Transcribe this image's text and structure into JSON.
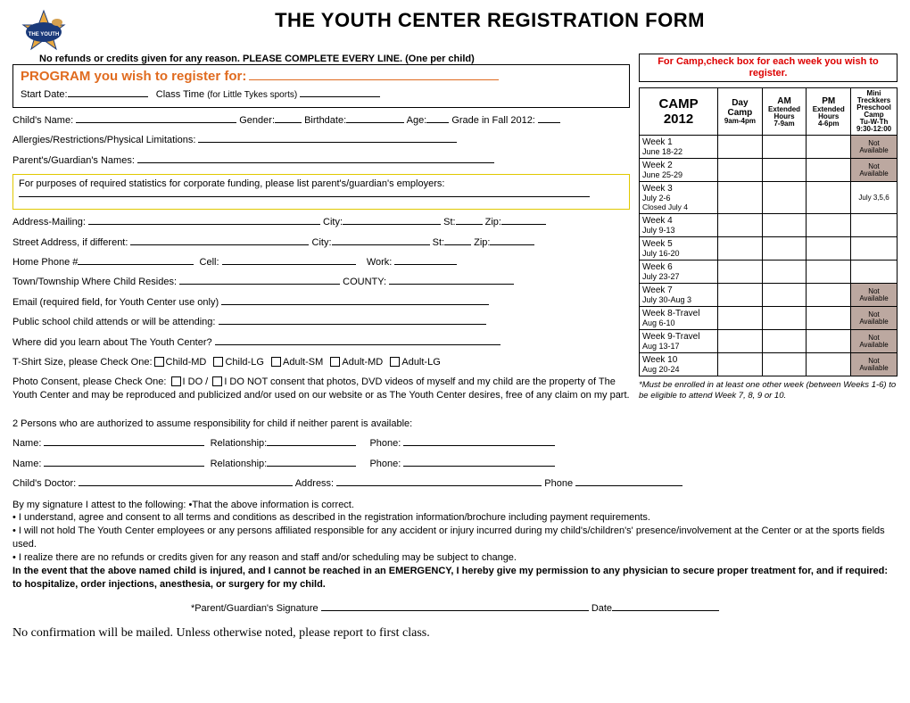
{
  "title": "THE YOUTH CENTER REGISTRATION FORM",
  "subtitle": "No refunds or credits given for any reason.  PLEASE COMPLETE EVERY LINE. (One per child)",
  "program": {
    "heading": "PROGRAM you wish to register for:",
    "start_date_label": "Start Date:",
    "class_time_label": "Class Time",
    "class_time_note": "(for Little Tykes sports)"
  },
  "fields": {
    "child_name": "Child's Name:",
    "gender": "Gender:",
    "birthdate": "Birthdate:",
    "age": "Age:",
    "grade": "Grade in Fall 2012:",
    "allergies": "Allergies/Restrictions/Physical Limitations:",
    "parents": "Parent's/Guardian's Names:",
    "employers": "For purposes of required statistics for corporate funding, please list parent's/guardian's employers:",
    "address_mailing": "Address-Mailing:",
    "city": "City:",
    "st": "St:",
    "zip": "Zip:",
    "street_address": "Street Address, if different:",
    "home_phone": "Home Phone #",
    "cell": "Cell:",
    "work": "Work:",
    "township": "Town/Township Where Child Resides:",
    "county": "COUNTY:",
    "email": "Email (required field, for Youth Center use only)",
    "public_school": "Public school child attends or will be attending:",
    "where_learn": "Where did you learn about The Youth Center?",
    "tshirt_label": "T-Shirt Size, please Check One:",
    "tshirt_sizes": [
      "Child-MD",
      "Child-LG",
      "Adult-SM",
      "Adult-MD",
      "Adult-LG"
    ],
    "photo_label": "Photo Consent, please Check One:",
    "photo_do": "I DO /",
    "photo_donot": "I DO NOT consent that photos, DVD videos of myself and my child are the property of The Youth Center and may be reproduced and publicized and/or used on our website or as The Youth Center desires, free of any claim on my part.",
    "two_persons": "2 Persons who are authorized to assume responsibility for child if neither parent is available:",
    "name": "Name:",
    "relationship": "Relationship:",
    "phone": "Phone:",
    "doctor": "Child's Doctor:",
    "doctor_address": "Address:",
    "doctor_phone": "Phone"
  },
  "camp": {
    "instruction": "For Camp,check box for each week you wish to register.",
    "header_main": "CAMP 2012",
    "cols": {
      "day": "Day Camp",
      "day_time": "9am-4pm",
      "am": "AM",
      "am_label": "Extended Hours",
      "am_time": "7-9am",
      "pm": "PM",
      "pm_label": "Extended Hours",
      "pm_time": "4-6pm",
      "mini": "Mini Treckkers Preschool Camp",
      "mini_days": "Tu-W-Th",
      "mini_time": "9:30-12:00"
    },
    "weeks": [
      {
        "label": "Week 1",
        "dates": "June 18-22",
        "na_mini": true
      },
      {
        "label": "Week 2",
        "dates": "June 25-29",
        "na_mini": true
      },
      {
        "label": "Week 3",
        "dates": "July 2-6",
        "note": "Closed July 4",
        "mini_note": "July 3,5,6"
      },
      {
        "label": "Week 4",
        "dates": "July 9-13"
      },
      {
        "label": "Week 5",
        "dates": "July 16-20"
      },
      {
        "label": "Week 6",
        "dates": "July 23-27"
      },
      {
        "label": "Week 7",
        "dates": "July 30-Aug 3",
        "na_mini": true
      },
      {
        "label": "Week 8-Travel",
        "dates": "Aug 6-10",
        "na_mini": true
      },
      {
        "label": "Week 9-Travel",
        "dates": "Aug 13-17",
        "na_mini": true
      },
      {
        "label": "Week 10",
        "dates": "Aug 20-24",
        "na_mini": true
      }
    ],
    "footnote": "*Must be enrolled in at least one other week (between Weeks 1-6) to be eligible to attend Week 7, 8, 9 or 10.",
    "not_available": "Not Available"
  },
  "terms": {
    "intro": "By my signature I attest to the following:  •That the above information is correct.",
    "b1": "• I understand, agree and consent to all terms and conditions as described in the registration information/brochure including payment requirements.",
    "b2": "• I will not hold The Youth Center employees or any persons affiliated responsible for any accident or injury incurred during my child's/children's' presence/involvement at the Center or at the sports fields used.",
    "b3": "• I realize there are no refunds or credits given for any reason and staff and/or scheduling may be subject to change.",
    "bold": "In the event that the above named child is injured, and I cannot be reached in an EMERGENCY, I hereby give my permission to any physician to secure proper treatment for, and if required:  to hospitalize, order injections, anesthesia, or surgery for my child."
  },
  "signature": {
    "label": "*Parent/Guardian's Signature",
    "date": "Date"
  },
  "final_note": "No confirmation will be mailed.  Unless otherwise noted, please report to first class."
}
